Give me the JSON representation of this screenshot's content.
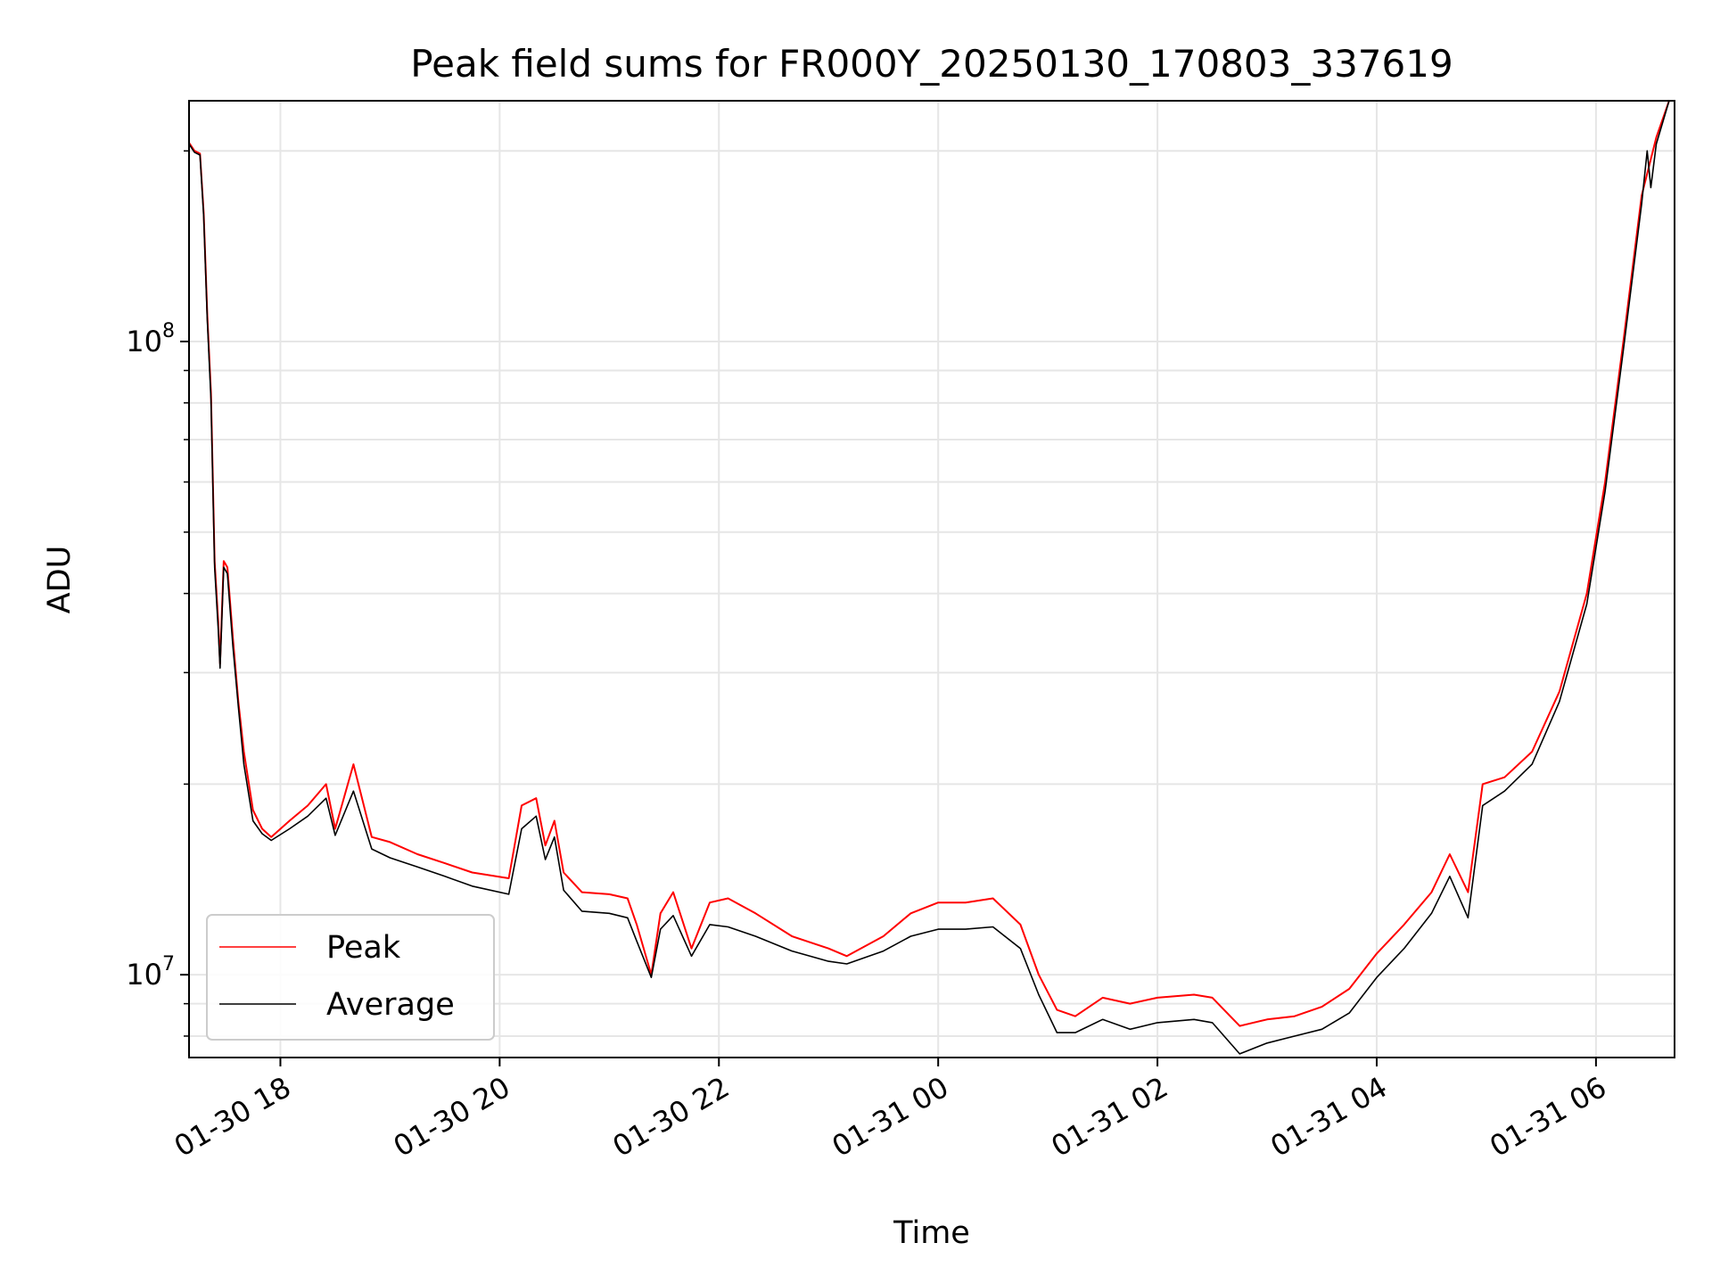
{
  "chart_data": {
    "type": "line",
    "title": "Peak field sums for FR000Y_20250130_170803_337619",
    "xlabel": "Time",
    "ylabel": "ADU",
    "y_scale": "log",
    "ylim": [
      7400000,
      240000000
    ],
    "xlim": [
      "2025-01-30 17:10",
      "2025-01-31 06:43"
    ],
    "x_ticks": [
      {
        "t": "2025-01-30 18:00",
        "label": "01-30 18"
      },
      {
        "t": "2025-01-30 20:00",
        "label": "01-30 20"
      },
      {
        "t": "2025-01-30 22:00",
        "label": "01-30 22"
      },
      {
        "t": "2025-01-31 00:00",
        "label": "01-31 00"
      },
      {
        "t": "2025-01-31 02:00",
        "label": "01-31 02"
      },
      {
        "t": "2025-01-31 04:00",
        "label": "01-31 04"
      },
      {
        "t": "2025-01-31 06:00",
        "label": "01-31 06"
      }
    ],
    "y_major_ticks": [
      {
        "v": 10000000,
        "base": "10",
        "exp": "7"
      },
      {
        "v": 100000000,
        "base": "10",
        "exp": "8"
      }
    ],
    "y_minor_ticks": [
      8000000,
      9000000,
      20000000,
      30000000,
      40000000,
      50000000,
      60000000,
      70000000,
      80000000,
      90000000,
      200000000
    ],
    "grid": true,
    "legend_position": "lower-left",
    "series": [
      {
        "name": "Peak",
        "color": "#ff0000",
        "points": [
          [
            "2025-01-30 17:10",
            206000000
          ],
          [
            "2025-01-30 17:13",
            200000000
          ],
          [
            "2025-01-30 17:16",
            198000000
          ],
          [
            "2025-01-30 17:18",
            160000000
          ],
          [
            "2025-01-30 17:20",
            110000000
          ],
          [
            "2025-01-30 17:22",
            83000000
          ],
          [
            "2025-01-30 17:24",
            45000000
          ],
          [
            "2025-01-30 17:26",
            36000000
          ],
          [
            "2025-01-30 17:27",
            31000000
          ],
          [
            "2025-01-30 17:29",
            45000000
          ],
          [
            "2025-01-30 17:31",
            44000000
          ],
          [
            "2025-01-30 17:34",
            34000000
          ],
          [
            "2025-01-30 17:37",
            27000000
          ],
          [
            "2025-01-30 17:40",
            22500000
          ],
          [
            "2025-01-30 17:45",
            18200000
          ],
          [
            "2025-01-30 17:50",
            17000000
          ],
          [
            "2025-01-30 17:55",
            16500000
          ],
          [
            "2025-01-30 18:05",
            17500000
          ],
          [
            "2025-01-30 18:15",
            18500000
          ],
          [
            "2025-01-30 18:25",
            20000000
          ],
          [
            "2025-01-30 18:30",
            17000000
          ],
          [
            "2025-01-30 18:40",
            21500000
          ],
          [
            "2025-01-30 18:50",
            16500000
          ],
          [
            "2025-01-30 19:00",
            16200000
          ],
          [
            "2025-01-30 19:15",
            15500000
          ],
          [
            "2025-01-30 19:30",
            15000000
          ],
          [
            "2025-01-30 19:45",
            14500000
          ],
          [
            "2025-01-30 20:05",
            14200000
          ],
          [
            "2025-01-30 20:12",
            18500000
          ],
          [
            "2025-01-30 20:20",
            19000000
          ],
          [
            "2025-01-30 20:25",
            16000000
          ],
          [
            "2025-01-30 20:30",
            17500000
          ],
          [
            "2025-01-30 20:35",
            14500000
          ],
          [
            "2025-01-30 20:45",
            13500000
          ],
          [
            "2025-01-30 21:00",
            13400000
          ],
          [
            "2025-01-30 21:10",
            13200000
          ],
          [
            "2025-01-30 21:15",
            12000000
          ],
          [
            "2025-01-30 21:23",
            10000000
          ],
          [
            "2025-01-30 21:28",
            12500000
          ],
          [
            "2025-01-30 21:35",
            13500000
          ],
          [
            "2025-01-30 21:45",
            11000000
          ],
          [
            "2025-01-30 21:55",
            13000000
          ],
          [
            "2025-01-30 22:05",
            13200000
          ],
          [
            "2025-01-30 22:20",
            12500000
          ],
          [
            "2025-01-30 22:40",
            11500000
          ],
          [
            "2025-01-30 23:00",
            11000000
          ],
          [
            "2025-01-30 23:10",
            10700000
          ],
          [
            "2025-01-30 23:30",
            11500000
          ],
          [
            "2025-01-30 23:45",
            12500000
          ],
          [
            "2025-01-31 00:00",
            13000000
          ],
          [
            "2025-01-31 00:15",
            13000000
          ],
          [
            "2025-01-31 00:30",
            13200000
          ],
          [
            "2025-01-31 00:45",
            12000000
          ],
          [
            "2025-01-31 00:55",
            10000000
          ],
          [
            "2025-01-31 01:05",
            8800000
          ],
          [
            "2025-01-31 01:15",
            8600000
          ],
          [
            "2025-01-31 01:30",
            9200000
          ],
          [
            "2025-01-31 01:45",
            9000000
          ],
          [
            "2025-01-31 02:00",
            9200000
          ],
          [
            "2025-01-31 02:20",
            9300000
          ],
          [
            "2025-01-31 02:30",
            9200000
          ],
          [
            "2025-01-31 02:45",
            8300000
          ],
          [
            "2025-01-31 03:00",
            8500000
          ],
          [
            "2025-01-31 03:15",
            8600000
          ],
          [
            "2025-01-31 03:30",
            8900000
          ],
          [
            "2025-01-31 03:45",
            9500000
          ],
          [
            "2025-01-31 04:00",
            10800000
          ],
          [
            "2025-01-31 04:15",
            12000000
          ],
          [
            "2025-01-31 04:30",
            13500000
          ],
          [
            "2025-01-31 04:40",
            15500000
          ],
          [
            "2025-01-31 04:50",
            13500000
          ],
          [
            "2025-01-31 04:58",
            20000000
          ],
          [
            "2025-01-31 05:10",
            20500000
          ],
          [
            "2025-01-31 05:25",
            22500000
          ],
          [
            "2025-01-31 05:40",
            28000000
          ],
          [
            "2025-01-31 05:55",
            40000000
          ],
          [
            "2025-01-31 06:05",
            60000000
          ],
          [
            "2025-01-31 06:15",
            100000000
          ],
          [
            "2025-01-31 06:25",
            170000000
          ],
          [
            "2025-01-31 06:33",
            210000000
          ],
          [
            "2025-01-31 06:40",
            240000000
          ]
        ]
      },
      {
        "name": "Average",
        "color": "#000000",
        "points": [
          [
            "2025-01-30 17:10",
            205000000
          ],
          [
            "2025-01-30 17:13",
            199000000
          ],
          [
            "2025-01-30 17:16",
            197000000
          ],
          [
            "2025-01-30 17:18",
            158000000
          ],
          [
            "2025-01-30 17:20",
            108000000
          ],
          [
            "2025-01-30 17:22",
            81000000
          ],
          [
            "2025-01-30 17:24",
            44000000
          ],
          [
            "2025-01-30 17:26",
            35000000
          ],
          [
            "2025-01-30 17:27",
            30500000
          ],
          [
            "2025-01-30 17:29",
            44000000
          ],
          [
            "2025-01-30 17:31",
            43000000
          ],
          [
            "2025-01-30 17:34",
            33000000
          ],
          [
            "2025-01-30 17:37",
            26500000
          ],
          [
            "2025-01-30 17:40",
            21500000
          ],
          [
            "2025-01-30 17:45",
            17500000
          ],
          [
            "2025-01-30 17:50",
            16700000
          ],
          [
            "2025-01-30 17:55",
            16300000
          ],
          [
            "2025-01-30 18:05",
            17000000
          ],
          [
            "2025-01-30 18:15",
            17800000
          ],
          [
            "2025-01-30 18:25",
            19000000
          ],
          [
            "2025-01-30 18:30",
            16600000
          ],
          [
            "2025-01-30 18:40",
            19500000
          ],
          [
            "2025-01-30 18:50",
            15800000
          ],
          [
            "2025-01-30 19:00",
            15300000
          ],
          [
            "2025-01-30 19:15",
            14800000
          ],
          [
            "2025-01-30 19:30",
            14300000
          ],
          [
            "2025-01-30 19:45",
            13800000
          ],
          [
            "2025-01-30 20:05",
            13400000
          ],
          [
            "2025-01-30 20:12",
            17000000
          ],
          [
            "2025-01-30 20:20",
            17800000
          ],
          [
            "2025-01-30 20:25",
            15200000
          ],
          [
            "2025-01-30 20:30",
            16500000
          ],
          [
            "2025-01-30 20:35",
            13600000
          ],
          [
            "2025-01-30 20:45",
            12600000
          ],
          [
            "2025-01-30 21:00",
            12500000
          ],
          [
            "2025-01-30 21:10",
            12300000
          ],
          [
            "2025-01-30 21:15",
            11300000
          ],
          [
            "2025-01-30 21:23",
            9900000
          ],
          [
            "2025-01-30 21:28",
            11800000
          ],
          [
            "2025-01-30 21:35",
            12400000
          ],
          [
            "2025-01-30 21:45",
            10700000
          ],
          [
            "2025-01-30 21:55",
            12000000
          ],
          [
            "2025-01-30 22:05",
            11900000
          ],
          [
            "2025-01-30 22:20",
            11500000
          ],
          [
            "2025-01-30 22:40",
            10900000
          ],
          [
            "2025-01-30 23:00",
            10500000
          ],
          [
            "2025-01-30 23:10",
            10400000
          ],
          [
            "2025-01-30 23:30",
            10900000
          ],
          [
            "2025-01-30 23:45",
            11500000
          ],
          [
            "2025-01-31 00:00",
            11800000
          ],
          [
            "2025-01-31 00:15",
            11800000
          ],
          [
            "2025-01-31 00:30",
            11900000
          ],
          [
            "2025-01-31 00:45",
            11000000
          ],
          [
            "2025-01-31 00:55",
            9300000
          ],
          [
            "2025-01-31 01:05",
            8100000
          ],
          [
            "2025-01-31 01:15",
            8100000
          ],
          [
            "2025-01-31 01:30",
            8500000
          ],
          [
            "2025-01-31 01:45",
            8200000
          ],
          [
            "2025-01-31 02:00",
            8400000
          ],
          [
            "2025-01-31 02:20",
            8500000
          ],
          [
            "2025-01-31 02:30",
            8400000
          ],
          [
            "2025-01-31 02:45",
            7500000
          ],
          [
            "2025-01-31 03:00",
            7800000
          ],
          [
            "2025-01-31 03:15",
            8000000
          ],
          [
            "2025-01-31 03:30",
            8200000
          ],
          [
            "2025-01-31 03:45",
            8700000
          ],
          [
            "2025-01-31 04:00",
            9900000
          ],
          [
            "2025-01-31 04:15",
            11000000
          ],
          [
            "2025-01-31 04:30",
            12500000
          ],
          [
            "2025-01-31 04:40",
            14300000
          ],
          [
            "2025-01-31 04:50",
            12300000
          ],
          [
            "2025-01-31 04:58",
            18500000
          ],
          [
            "2025-01-31 05:10",
            19500000
          ],
          [
            "2025-01-31 05:25",
            21500000
          ],
          [
            "2025-01-31 05:40",
            27000000
          ],
          [
            "2025-01-31 05:55",
            38500000
          ],
          [
            "2025-01-31 06:05",
            58000000
          ],
          [
            "2025-01-31 06:15",
            97000000
          ],
          [
            "2025-01-31 06:25",
            165000000
          ],
          [
            "2025-01-31 06:28",
            200000000
          ],
          [
            "2025-01-31 06:30",
            175000000
          ],
          [
            "2025-01-31 06:33",
            205000000
          ],
          [
            "2025-01-31 06:40",
            240000000
          ]
        ]
      }
    ]
  }
}
